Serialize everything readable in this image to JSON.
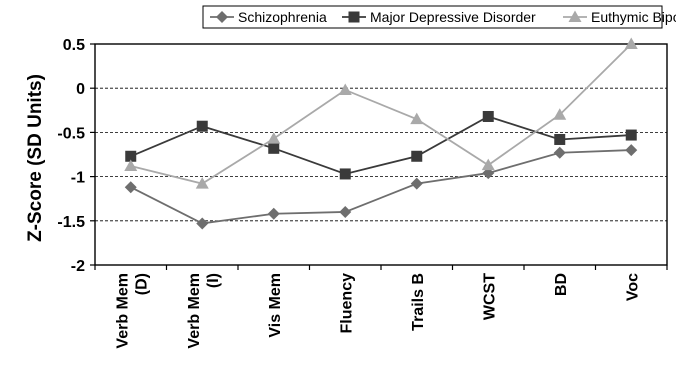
{
  "chart_data": {
    "type": "line",
    "title": "",
    "xlabel": "",
    "ylabel": "Z-Score (SD Units)",
    "ylim": [
      -2,
      0.5
    ],
    "yticks": [
      "0.5",
      "0",
      "-0.5",
      "-1",
      "-1.5",
      "-2"
    ],
    "grid": "horizontal dashed",
    "legend_position": "top",
    "categories": [
      "Verb Mem (D)",
      "Verb Mem (I)",
      "Vis Mem",
      "Fluency",
      "Trails B",
      "WCST",
      "BD",
      "Voc"
    ],
    "category_lines": [
      [
        "Verb Mem",
        "(D)"
      ],
      [
        "Verb Mem",
        "(I)"
      ],
      [
        "Vis Mem"
      ],
      [
        "Fluency"
      ],
      [
        "Trails B"
      ],
      [
        "WCST"
      ],
      [
        "BD"
      ],
      [
        "Voc"
      ]
    ],
    "series": [
      {
        "name": "Schizophrenia",
        "marker": "diamond",
        "color": "#6e6e6e",
        "values": [
          -1.12,
          -1.53,
          -1.42,
          -1.4,
          -1.08,
          -0.96,
          -0.73,
          -0.7
        ]
      },
      {
        "name": "Major Depressive Disorder",
        "marker": "square",
        "color": "#3a3a3a",
        "values": [
          -0.77,
          -0.43,
          -0.68,
          -0.97,
          -0.77,
          -0.32,
          -0.58,
          -0.53
        ]
      },
      {
        "name": "Euthymic Bipolar Disorder",
        "marker": "triangle",
        "color": "#a9a9a9",
        "values": [
          -0.88,
          -1.08,
          -0.57,
          -0.02,
          -0.35,
          -0.87,
          -0.3,
          0.5
        ]
      }
    ]
  }
}
